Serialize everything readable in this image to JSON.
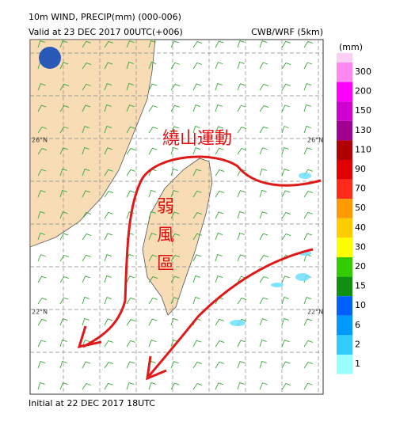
{
  "header": {
    "title": "10m WIND, PRECIP(mm) (000-006)",
    "valid": "Valid at 23 DEC 2017 00UTC(+006)",
    "model": "CWB/WRF (5km)"
  },
  "map": {
    "lat_labels_left": [
      "26°N",
      "22°N"
    ],
    "lat_labels_right": [
      "26°N",
      "22°N"
    ]
  },
  "annotations": {
    "flow": "繞山運動",
    "weak": [
      "弱",
      "風",
      "區"
    ]
  },
  "colorbar": {
    "unit": "(mm)",
    "labels": [
      "300",
      "200",
      "150",
      "130",
      "110",
      "90",
      "70",
      "50",
      "40",
      "30",
      "20",
      "15",
      "10",
      "6",
      "2",
      "1"
    ],
    "colors": [
      "#ff88f0",
      "#ff00ff",
      "#d000d0",
      "#a00090",
      "#b00000",
      "#e00000",
      "#ff2a1a",
      "#ff9900",
      "#ffcc00",
      "#ffff00",
      "#33cc00",
      "#109010",
      "#0060ff",
      "#0099ff",
      "#33ccff",
      "#99ffff"
    ]
  },
  "footer": "Initial at 22 DEC 2017 18UTC"
}
